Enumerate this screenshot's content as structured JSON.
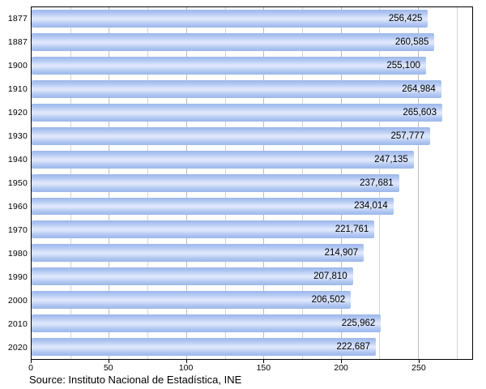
{
  "chart_data": {
    "type": "bar",
    "orientation": "horizontal",
    "title": "",
    "xlabel": "",
    "ylabel": "",
    "categories": [
      "1877",
      "1887",
      "1900",
      "1910",
      "1920",
      "1930",
      "1940",
      "1950",
      "1960",
      "1970",
      "1980",
      "1990",
      "2000",
      "2010",
      "2020"
    ],
    "values": [
      256425,
      260585,
      255100,
      264984,
      265603,
      257777,
      247135,
      237681,
      234014,
      221761,
      214907,
      207810,
      206502,
      225962,
      222687
    ],
    "value_labels": [
      "256,425",
      "260,585",
      "255,100",
      "264,984",
      "265,603",
      "257,777",
      "247,135",
      "237,681",
      "234,014",
      "221,761",
      "214,907",
      "207,810",
      "206,502",
      "225,962",
      "222,687"
    ],
    "xlim": [
      0,
      285000
    ],
    "x_ticks": [
      0,
      50000,
      100000,
      150000,
      200000,
      250000
    ],
    "x_tick_labels": [
      "0",
      "50",
      "100",
      "150",
      "200",
      "250"
    ],
    "grid_minor_step": 25000,
    "grid": "on",
    "legend": "none",
    "bar_color": "#b4c9f3",
    "source": "Source: Instituto Nacional de Estadística, INE"
  }
}
